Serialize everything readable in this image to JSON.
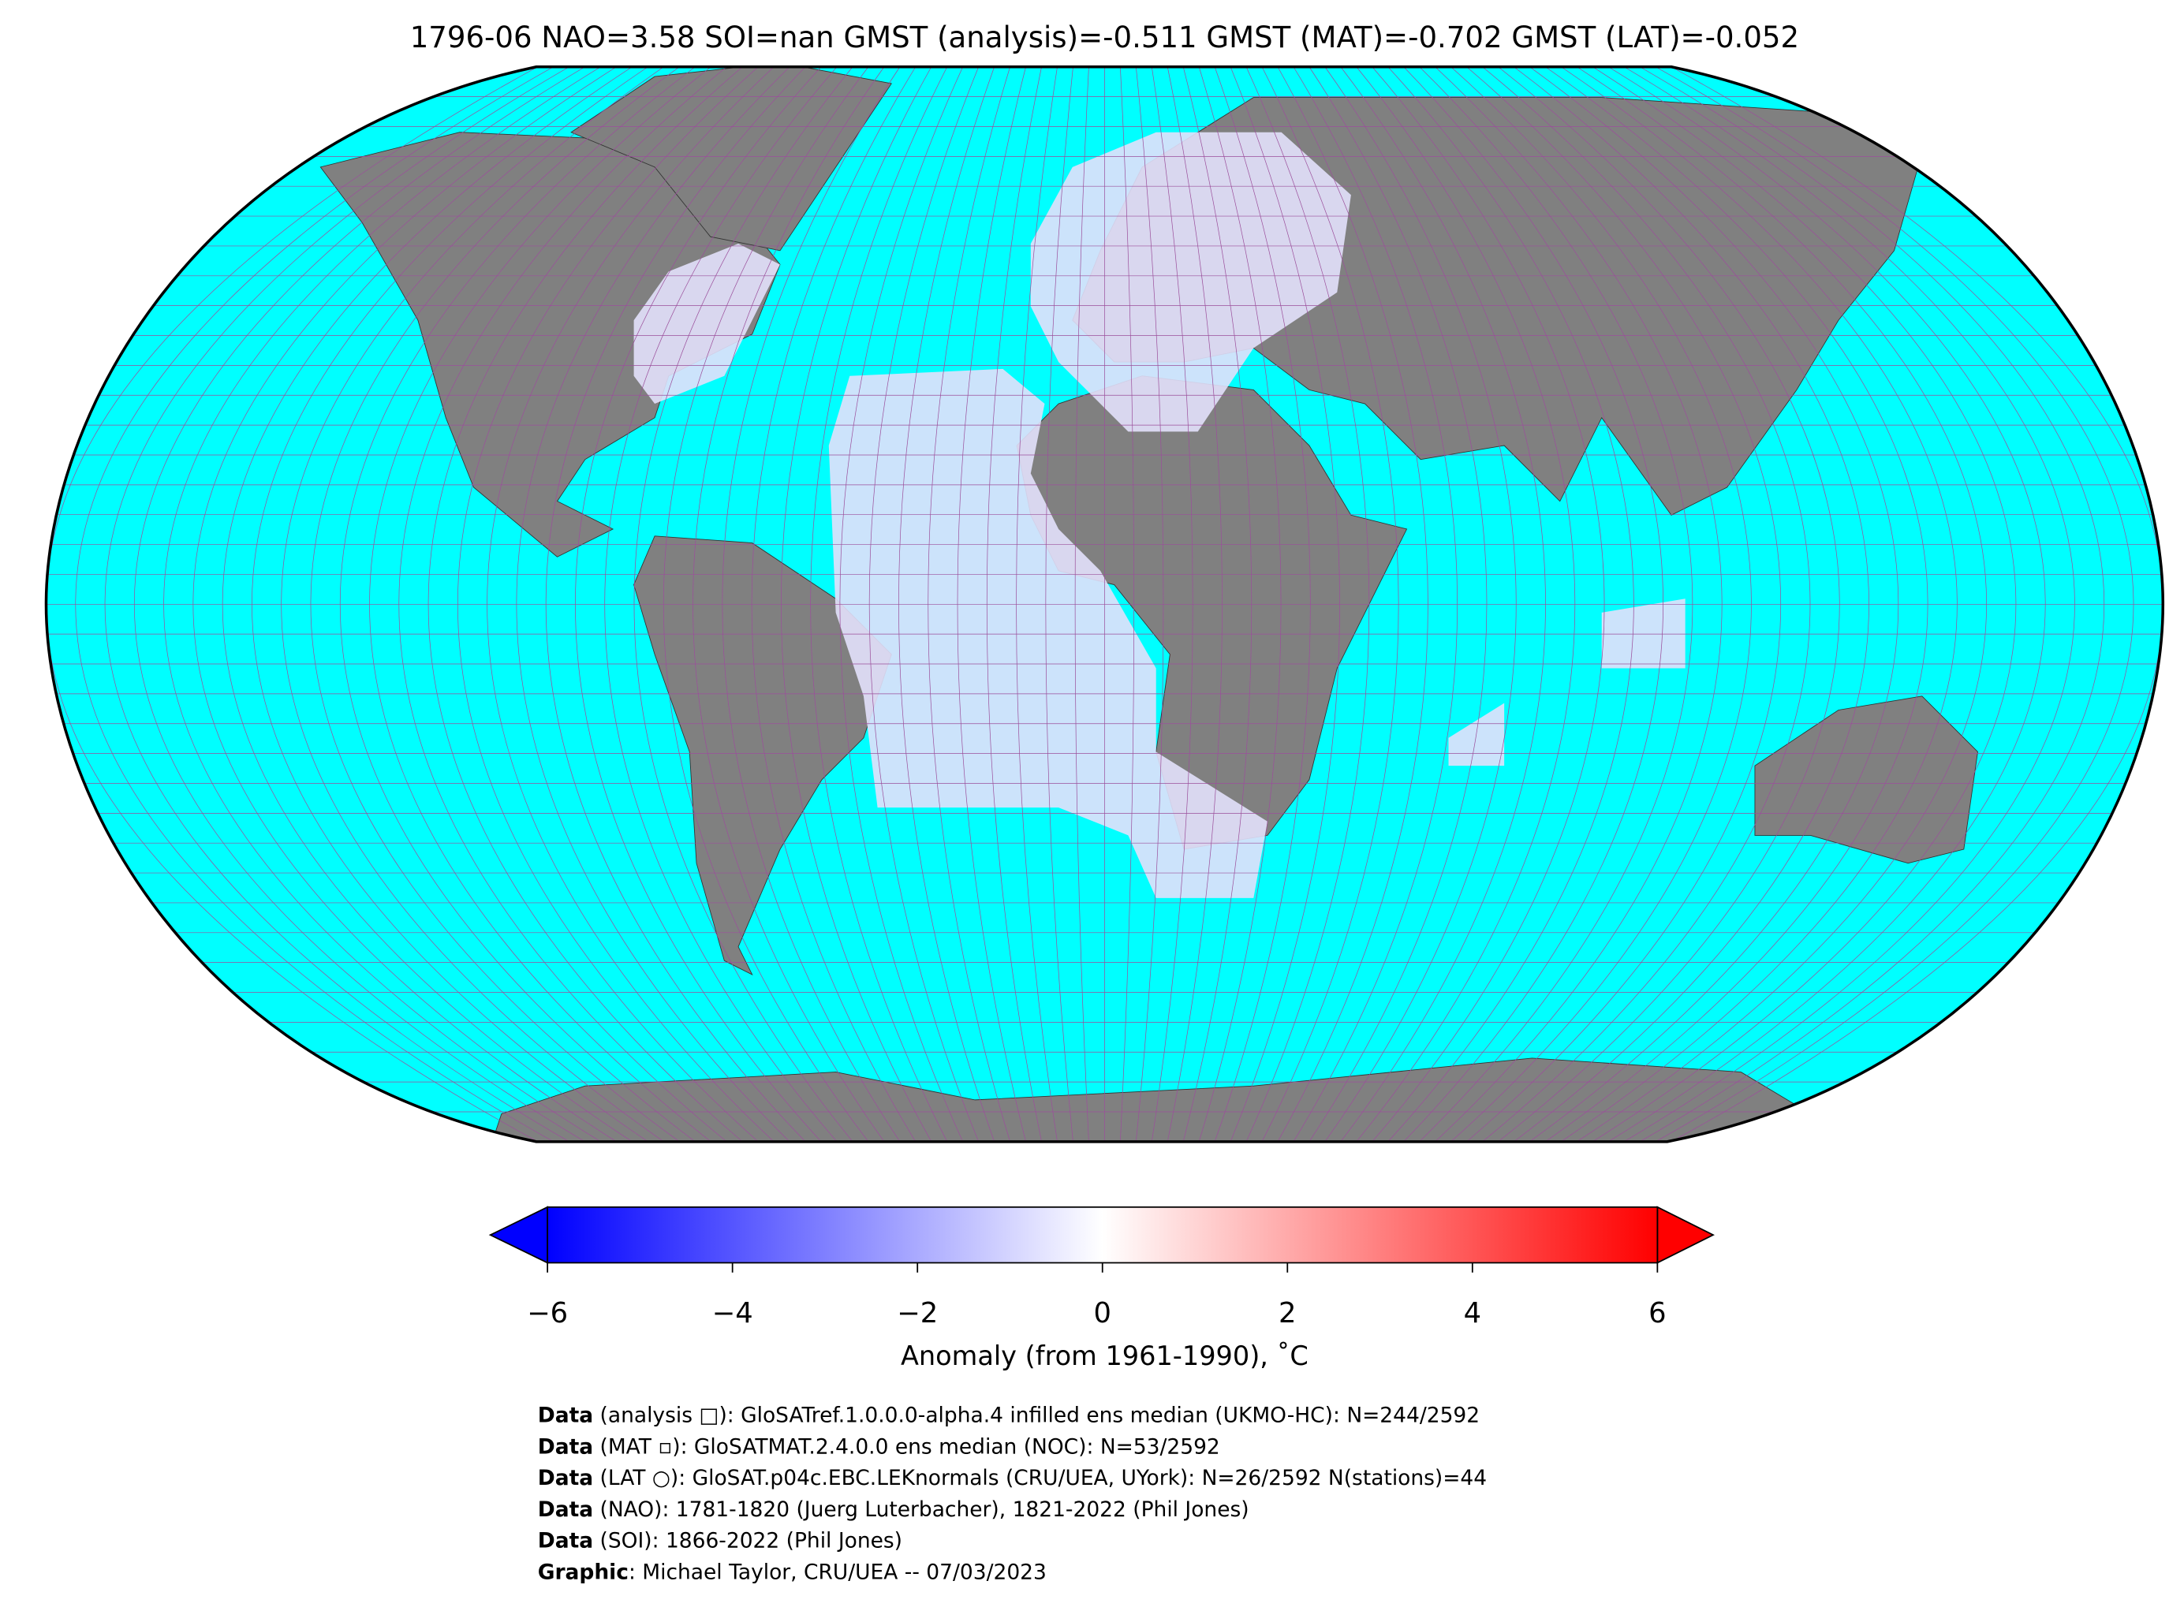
{
  "title": "1796-06 NAO=3.58 SOI=nan GMST (analysis)=-0.511 GMST (MAT)=-0.702 GMST (LAT)=-0.052",
  "colorbar": {
    "label": "Anomaly (from 1961-1990), ˚C",
    "range": [
      -6,
      6
    ],
    "ticks": [
      {
        "value": -6,
        "label": "−6"
      },
      {
        "value": -4,
        "label": "−4"
      },
      {
        "value": -2,
        "label": "−2"
      },
      0,
      2,
      4,
      6
    ],
    "colors": [
      "#0000ff",
      "#ffffff",
      "#ff0000"
    ]
  },
  "credits": [
    {
      "bold": "Data",
      "text": " (analysis □): GloSATref.1.0.0.0-alpha.4 infilled ens median (UKMO-HC): N=244/2592"
    },
    {
      "bold": "Data",
      "text": " (MAT ▫): GloSATMAT.2.4.0.0 ens median (NOC): N=53/2592"
    },
    {
      "bold": "Data",
      "text": " (LAT ○): GloSAT.p04c.EBC.LEKnormals (CRU/UEA, UYork): N=26/2592 N(stations)=44"
    },
    {
      "bold": "Data",
      "text": " (NAO): 1781-1820 (Juerg Luterbacher), 1821-2022 (Phil Jones)"
    },
    {
      "bold": "Data",
      "text": " (SOI): 1866-2022 (Phil Jones)"
    },
    {
      "bold": "Graphic",
      "text": ": Michael Taylor, CRU/UEA -- 07/03/2023"
    }
  ]
}
